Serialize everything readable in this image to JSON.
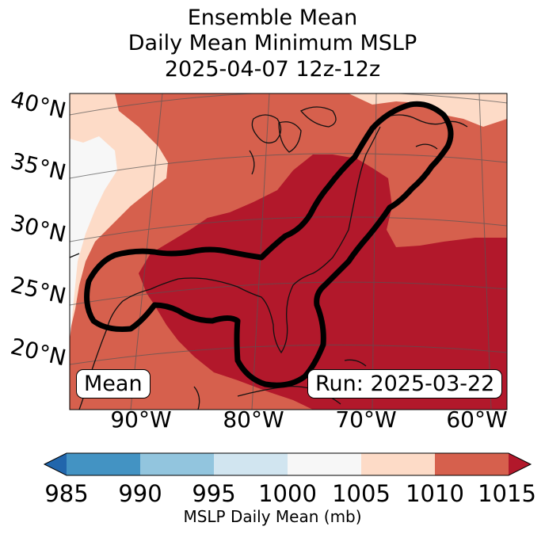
{
  "title": {
    "line1": "Ensemble Mean",
    "line2": "Daily Mean Minimum MSLP",
    "line3": "2025-04-07 12z-12z"
  },
  "map": {
    "lat_labels": [
      "40°N",
      "35°N",
      "30°N",
      "25°N",
      "20°N"
    ],
    "lon_labels": [
      "90°W",
      "80°W",
      "70°W",
      "60°W"
    ],
    "left_box": "Mean",
    "right_box": "Run: 2025-03-22",
    "contour_color": "#000000"
  },
  "colorbar": {
    "label": "MSLP Daily Mean (mb)",
    "ticks": [
      "985",
      "990",
      "995",
      "1000",
      "1005",
      "1010",
      "1015"
    ],
    "colors": [
      "#2166ac",
      "#4393c3",
      "#92c5de",
      "#d1e5f0",
      "#f7f7f7",
      "#fddbc7",
      "#d6604d",
      "#b2182b"
    ]
  }
}
